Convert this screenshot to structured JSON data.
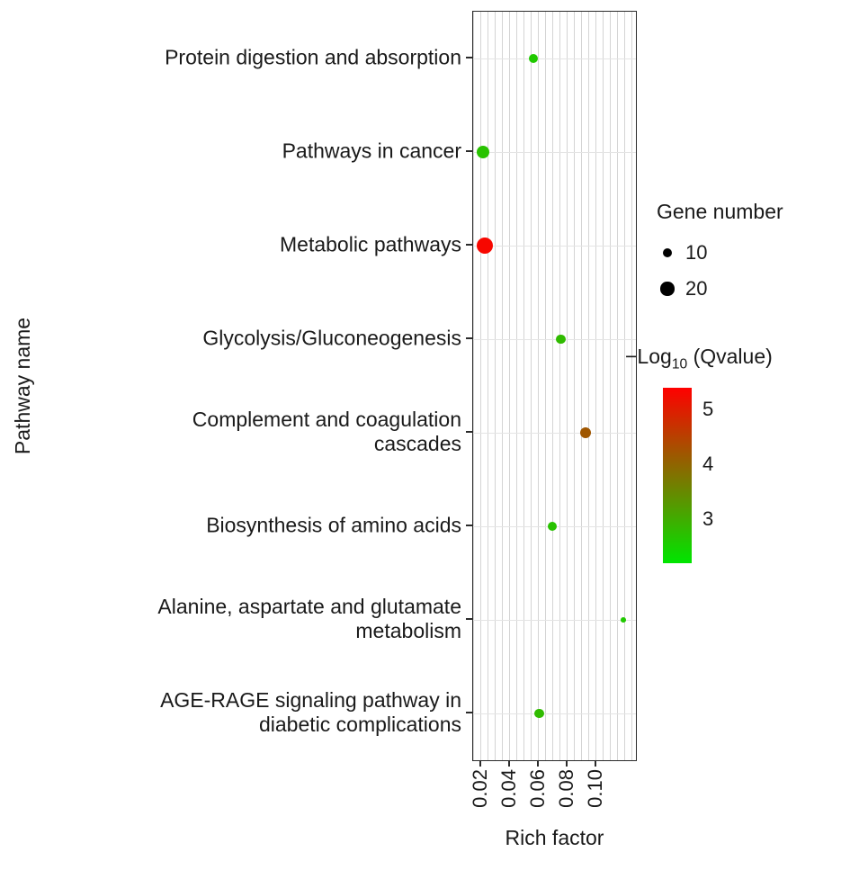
{
  "chart_data": {
    "type": "scatter",
    "title": "",
    "xlabel": "Rich factor",
    "ylabel": "Pathway name",
    "xlim": [
      0.015,
      0.128
    ],
    "grid_step": 0.005,
    "xticks": [
      0.02,
      0.04,
      0.06,
      0.08,
      0.1
    ],
    "xtick_labels": [
      "0.02",
      "0.04",
      "0.06",
      "0.08",
      "0.10"
    ],
    "size_scale": 1.7,
    "categories": [
      "Protein digestion and absorption",
      "Pathways in cancer",
      "Metabolic pathways",
      "Glycolysis/Gluconeogenesis",
      "Complement and coagulation cascades",
      "Biosynthesis of amino acids",
      "Alanine, aspartate and glutamate metabolism",
      "AGE-RAGE signaling pathway in diabetic complications"
    ],
    "points": [
      {
        "pathway": "Protein digestion and absorption",
        "label_lines": [
          "Protein digestion and absorption"
        ],
        "rich_factor": 0.057,
        "gene_number": 9,
        "neg_log10_qvalue": 2.6
      },
      {
        "pathway": "Pathways in cancer",
        "label_lines": [
          "Pathways in cancer"
        ],
        "rich_factor": 0.022,
        "gene_number": 18,
        "neg_log10_qvalue": 2.7
      },
      {
        "pathway": "Metabolic pathways",
        "label_lines": [
          "Metabolic pathways"
        ],
        "rich_factor": 0.023,
        "gene_number": 30,
        "neg_log10_qvalue": 5.3
      },
      {
        "pathway": "Glycolysis/Gluconeogenesis",
        "label_lines": [
          "Glycolysis/Gluconeogenesis"
        ],
        "rich_factor": 0.076,
        "gene_number": 10,
        "neg_log10_qvalue": 2.8
      },
      {
        "pathway": "Complement and coagulation cascades",
        "label_lines": [
          "Complement and coagulation",
          "cascades"
        ],
        "rich_factor": 0.093,
        "gene_number": 14,
        "neg_log10_qvalue": 4.2
      },
      {
        "pathway": "Biosynthesis of amino acids",
        "label_lines": [
          "Biosynthesis of amino acids"
        ],
        "rich_factor": 0.07,
        "gene_number": 10,
        "neg_log10_qvalue": 2.7
      },
      {
        "pathway": "Alanine, aspartate and glutamate metabolism",
        "label_lines": [
          "Alanine, aspartate and glutamate",
          "metabolism"
        ],
        "rich_factor": 0.119,
        "gene_number": 3,
        "neg_log10_qvalue": 2.6
      },
      {
        "pathway": "AGE-RAGE signaling pathway in diabetic complications",
        "label_lines": [
          "AGE-RAGE signaling pathway in",
          "diabetic complications"
        ],
        "rich_factor": 0.061,
        "gene_number": 10,
        "neg_log10_qvalue": 2.8
      }
    ],
    "size_legend": {
      "title": "Gene number",
      "entries": [
        10,
        20
      ]
    },
    "color_legend": {
      "title": {
        "prefix": "−Log",
        "sub": "10",
        "suffix": " (Qvalue)"
      },
      "ticks": [
        5,
        4,
        3
      ],
      "domain": [
        2.2,
        5.4
      ]
    },
    "colors": {
      "gradient_low": "#00e600",
      "gradient_high": "#ff0000",
      "legend_dot": "#000000",
      "gridline": "#d4d4d4",
      "panel_border": "#2b2b2b"
    }
  }
}
